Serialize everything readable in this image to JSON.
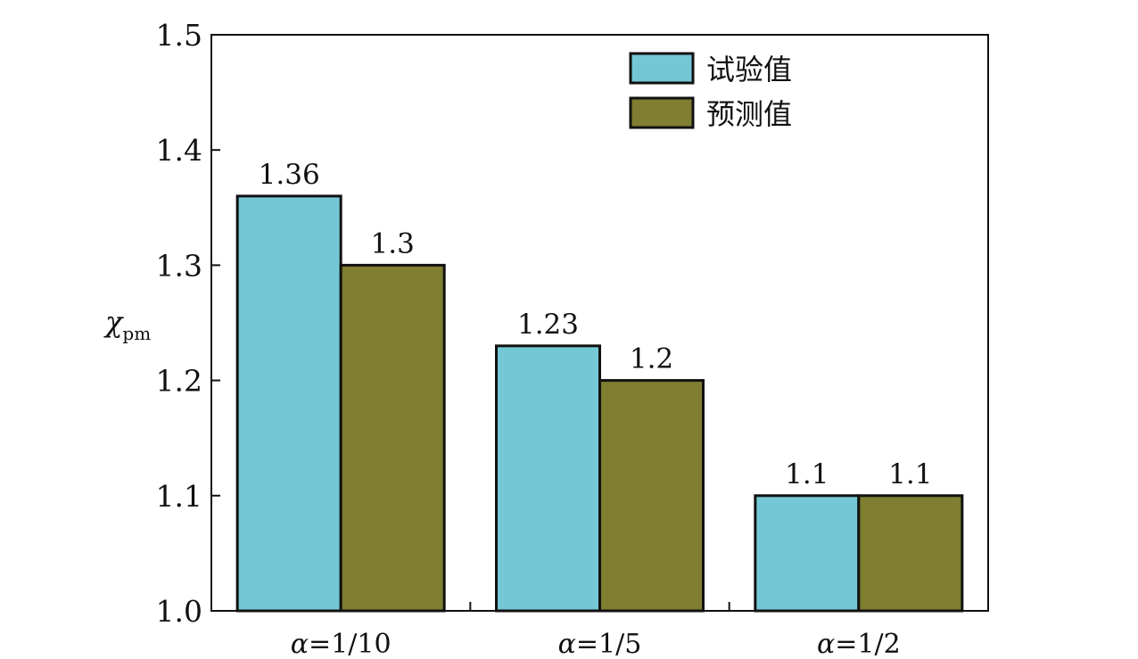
{
  "chart_data": {
    "type": "bar",
    "categories": [
      "α=1/10",
      "α=1/5",
      "α=1/2"
    ],
    "series": [
      {
        "name": "试验值",
        "values": [
          1.36,
          1.23,
          1.1
        ],
        "color": "#74c8d4",
        "labels": [
          "1.36",
          "1.23",
          "1.1"
        ]
      },
      {
        "name": "预测值",
        "values": [
          1.3,
          1.2,
          1.1
        ],
        "color": "#7f7e31",
        "labels": [
          "1.3",
          "1.2",
          "1.1"
        ]
      }
    ],
    "ylabel": {
      "symbol": "χ",
      "subscript": "pm"
    },
    "xlabel": "",
    "title": "",
    "ylim": [
      1.0,
      1.5
    ],
    "yticks": [
      "1.0",
      "1.1",
      "1.2",
      "1.3",
      "1.4",
      "1.5"
    ],
    "legend_position": "top-right",
    "grid": false
  }
}
